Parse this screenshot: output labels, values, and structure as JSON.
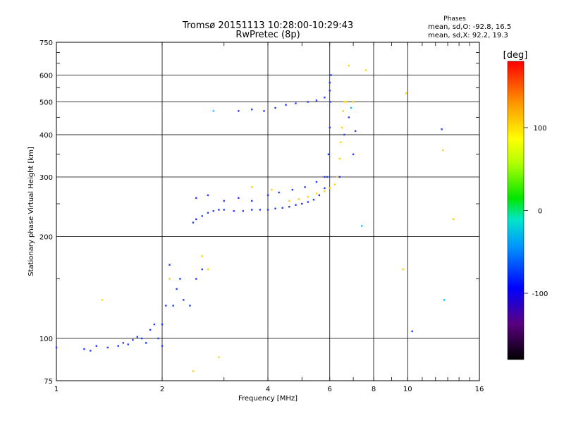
{
  "chart_data": {
    "type": "scatter",
    "title": "Tromsø 20151113 10:28:00-10:29:43",
    "subtitle": "RwPretec (8p)",
    "xlabel": "Frequency [MHz]",
    "ylabel": "Stationary phase Virtual Height [km]",
    "x_scale": "log",
    "y_scale": "log",
    "xlim": [
      1,
      16
    ],
    "ylim": [
      75,
      750
    ],
    "x_ticks": [
      1,
      2,
      4,
      6,
      8,
      10,
      16
    ],
    "x_tick_labels": [
      "1",
      "2",
      "4",
      "6",
      "8",
      "10",
      "16"
    ],
    "y_ticks": [
      75,
      100,
      200,
      300,
      400,
      500,
      600,
      750
    ],
    "y_tick_labels": [
      "75",
      "100",
      "200",
      "300",
      "400",
      "500",
      "600",
      "750"
    ],
    "grid": true,
    "stats": {
      "header": "Phases",
      "line1": "mean, sd,O: -92.8, 16.5",
      "line2": "mean, sd,X:  92.2, 19.3"
    },
    "colorbar": {
      "label": "[deg]",
      "range": [
        -180,
        180
      ],
      "ticks": [
        100,
        0,
        -100
      ],
      "tick_labels": [
        "100",
        "0",
        "-100"
      ]
    },
    "series": [
      {
        "mode": "O",
        "phase_deg": -92.8,
        "color": "#1e3cff",
        "points": [
          [
            1.0,
            94
          ],
          [
            1.2,
            93
          ],
          [
            1.25,
            92
          ],
          [
            1.3,
            95
          ],
          [
            1.4,
            94
          ],
          [
            1.5,
            95
          ],
          [
            1.55,
            97
          ],
          [
            1.6,
            96
          ],
          [
            1.65,
            99
          ],
          [
            1.7,
            101
          ],
          [
            1.75,
            100
          ],
          [
            1.8,
            97
          ],
          [
            1.85,
            106
          ],
          [
            1.9,
            110
          ],
          [
            1.95,
            100
          ],
          [
            2.0,
            95
          ],
          [
            2.0,
            110
          ],
          [
            2.05,
            125
          ],
          [
            2.1,
            165
          ],
          [
            2.15,
            125
          ],
          [
            2.2,
            140
          ],
          [
            2.25,
            150
          ],
          [
            2.3,
            130
          ],
          [
            2.4,
            125
          ],
          [
            2.5,
            150
          ],
          [
            2.6,
            160
          ],
          [
            2.45,
            220
          ],
          [
            2.5,
            225
          ],
          [
            2.6,
            230
          ],
          [
            2.7,
            235
          ],
          [
            2.8,
            238
          ],
          [
            2.9,
            240
          ],
          [
            3.0,
            240
          ],
          [
            3.2,
            238
          ],
          [
            3.4,
            238
          ],
          [
            3.6,
            240
          ],
          [
            3.8,
            240
          ],
          [
            4.0,
            240
          ],
          [
            4.2,
            242
          ],
          [
            4.4,
            243
          ],
          [
            4.6,
            245
          ],
          [
            4.8,
            248
          ],
          [
            5.0,
            250
          ],
          [
            5.2,
            253
          ],
          [
            5.4,
            257
          ],
          [
            5.6,
            265
          ],
          [
            5.8,
            278
          ],
          [
            5.9,
            300
          ],
          [
            5.95,
            350
          ],
          [
            6.0,
            420
          ],
          [
            6.02,
            500
          ],
          [
            6.05,
            600
          ],
          [
            2.5,
            260
          ],
          [
            2.7,
            265
          ],
          [
            3.0,
            255
          ],
          [
            3.3,
            260
          ],
          [
            3.6,
            255
          ],
          [
            4.0,
            265
          ],
          [
            4.3,
            270
          ],
          [
            4.7,
            275
          ],
          [
            5.1,
            280
          ],
          [
            5.5,
            290
          ],
          [
            5.8,
            300
          ],
          [
            3.3,
            470
          ],
          [
            3.6,
            475
          ],
          [
            3.9,
            470
          ],
          [
            4.2,
            480
          ],
          [
            4.5,
            490
          ],
          [
            4.8,
            495
          ],
          [
            5.2,
            500
          ],
          [
            5.5,
            505
          ],
          [
            5.8,
            515
          ],
          [
            6.0,
            540
          ],
          [
            6.0,
            570
          ],
          [
            6.4,
            300
          ],
          [
            6.6,
            400
          ],
          [
            6.8,
            450
          ],
          [
            7.0,
            350
          ],
          [
            7.1,
            410
          ],
          [
            10.3,
            105
          ],
          [
            12.5,
            415
          ]
        ]
      },
      {
        "mode": "X",
        "phase_deg": 92.2,
        "color": "#ffd200",
        "points": [
          [
            1.35,
            130
          ],
          [
            2.1,
            150
          ],
          [
            2.45,
            80
          ],
          [
            2.6,
            175
          ],
          [
            2.7,
            160
          ],
          [
            2.9,
            88
          ],
          [
            3.6,
            280
          ],
          [
            4.1,
            275
          ],
          [
            4.6,
            255
          ],
          [
            4.9,
            258
          ],
          [
            5.2,
            262
          ],
          [
            5.5,
            268
          ],
          [
            5.8,
            272
          ],
          [
            6.0,
            278
          ],
          [
            6.2,
            285
          ],
          [
            6.3,
            300
          ],
          [
            6.4,
            340
          ],
          [
            6.45,
            380
          ],
          [
            6.5,
            420
          ],
          [
            6.55,
            470
          ],
          [
            6.6,
            500
          ],
          [
            6.7,
            500
          ],
          [
            7.0,
            500
          ],
          [
            6.8,
            640
          ],
          [
            7.6,
            620
          ],
          [
            9.9,
            530
          ],
          [
            12.6,
            360
          ],
          [
            13.5,
            225
          ],
          [
            9.7,
            160
          ]
        ]
      },
      {
        "mode": "other",
        "color": "#00c8ff",
        "points": [
          [
            2.8,
            470
          ],
          [
            6.9,
            480
          ],
          [
            7.4,
            215
          ],
          [
            12.7,
            130
          ]
        ]
      }
    ]
  }
}
